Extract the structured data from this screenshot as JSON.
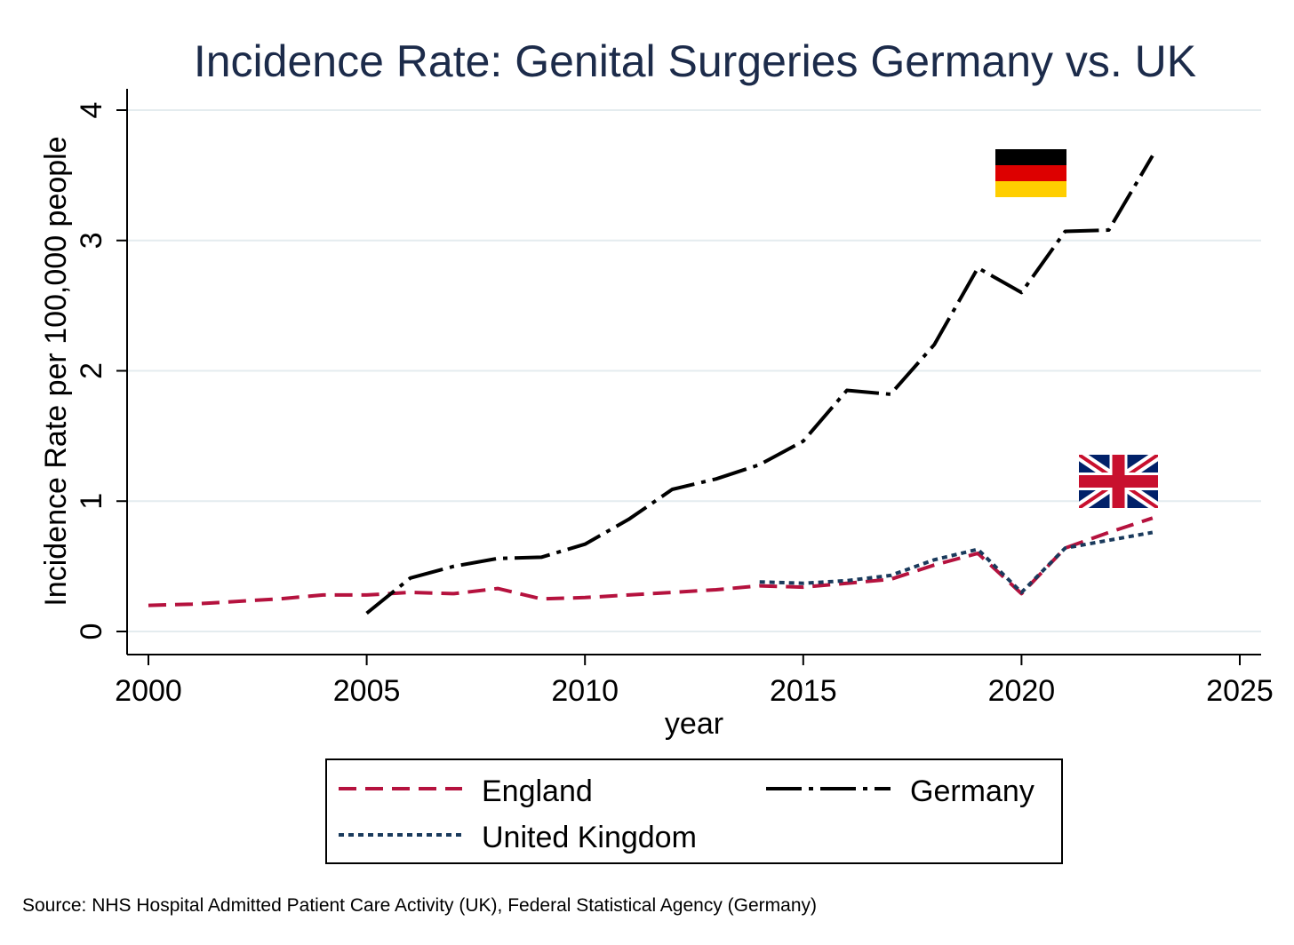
{
  "chart_data": {
    "type": "line",
    "title": "Incidence Rate: Genital Surgeries Germany vs. UK",
    "xlabel": "year",
    "ylabel": "Incidence Rate per 100,000 people",
    "xlim": [
      2000,
      2025
    ],
    "ylim": [
      0,
      4
    ],
    "x_ticks": [
      "2000",
      "2005",
      "2010",
      "2015",
      "2020",
      "2025"
    ],
    "y_ticks": [
      "0",
      "1",
      "2",
      "3",
      "4"
    ],
    "grid": "horizontal",
    "legend_position": "bottom",
    "source": "Source: NHS Hospital Admitted Patient Care Activity (UK), Federal Statistical Agency (Germany)",
    "series": [
      {
        "name": "England",
        "color": "#b5123e",
        "style": "dashed",
        "x": [
          2000,
          2001,
          2002,
          2003,
          2004,
          2005,
          2006,
          2007,
          2008,
          2009,
          2010,
          2011,
          2012,
          2013,
          2014,
          2015,
          2016,
          2017,
          2018,
          2019,
          2020,
          2021,
          2022,
          2023
        ],
        "y": [
          0.2,
          0.21,
          0.23,
          0.25,
          0.28,
          0.28,
          0.3,
          0.29,
          0.33,
          0.25,
          0.26,
          0.28,
          0.3,
          0.32,
          0.35,
          0.34,
          0.37,
          0.4,
          0.51,
          0.6,
          0.29,
          0.64,
          0.76,
          0.87
        ]
      },
      {
        "name": "United Kingdom",
        "color": "#1a3a5c",
        "style": "dotted",
        "x": [
          2014,
          2015,
          2016,
          2017,
          2018,
          2019,
          2020,
          2021,
          2022,
          2023
        ],
        "y": [
          0.38,
          0.37,
          0.39,
          0.43,
          0.55,
          0.63,
          0.3,
          0.64,
          0.7,
          0.76
        ]
      },
      {
        "name": "Germany",
        "color": "#000000",
        "style": "dash-dot",
        "x": [
          2005,
          2006,
          2007,
          2008,
          2009,
          2010,
          2011,
          2012,
          2013,
          2014,
          2015,
          2016,
          2017,
          2018,
          2019,
          2020,
          2021,
          2022,
          2023
        ],
        "y": [
          0.14,
          0.41,
          0.5,
          0.56,
          0.57,
          0.67,
          0.86,
          1.09,
          1.17,
          1.28,
          1.46,
          1.85,
          1.82,
          2.2,
          2.79,
          2.6,
          3.07,
          3.08,
          3.65
        ]
      }
    ],
    "annotations": [
      {
        "type": "flag",
        "country": "Germany",
        "icon": "germany-flag-icon"
      },
      {
        "type": "flag",
        "country": "United Kingdom",
        "icon": "uk-flag-icon"
      }
    ]
  }
}
